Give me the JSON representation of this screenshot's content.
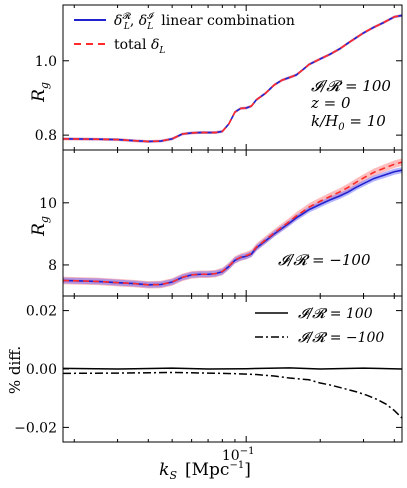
{
  "figure": {
    "xlabel": "k_S  [Mpc⁻¹]",
    "xlabel_parts": {
      "k": "k",
      "sub": "S",
      "unit_open": "[Mpc",
      "unit_exp": "−1",
      "unit_close": "]"
    }
  },
  "chart_data": [
    {
      "type": "line",
      "panel": "top",
      "ylabel": "R_g",
      "xscale": "log",
      "xlim": [
        0.018,
        0.43
      ],
      "ylim": [
        0.76,
        1.15
      ],
      "yticks": [
        {
          "v": 0.8,
          "label": "0.8"
        },
        {
          "v": 1.0,
          "label": "1.0"
        }
      ],
      "annotations": [
        "𝓘/𝓡 = 100",
        "z = 0",
        "k/H₀ = 10"
      ],
      "legend_position": "upper-left",
      "series": [
        {
          "name": "δ_L^𝓡, δ_L^𝓘 linear combination",
          "color": "#2222cc",
          "style": "solid",
          "band": true
        },
        {
          "name": "total δ_L",
          "color": "#ff2a2a",
          "style": "dashed"
        }
      ],
      "x": [
        0.018,
        0.025,
        0.03,
        0.035,
        0.04,
        0.045,
        0.05,
        0.055,
        0.06,
        0.065,
        0.07,
        0.075,
        0.08,
        0.085,
        0.09,
        0.095,
        0.1,
        0.105,
        0.11,
        0.12,
        0.13,
        0.14,
        0.15,
        0.16,
        0.17,
        0.18,
        0.2,
        0.22,
        0.24,
        0.26,
        0.28,
        0.3,
        0.33,
        0.36,
        0.4,
        0.43
      ],
      "y": [
        0.79,
        0.789,
        0.788,
        0.785,
        0.783,
        0.784,
        0.79,
        0.803,
        0.806,
        0.807,
        0.807,
        0.807,
        0.81,
        0.83,
        0.862,
        0.872,
        0.873,
        0.878,
        0.895,
        0.913,
        0.935,
        0.948,
        0.955,
        0.962,
        0.976,
        0.99,
        1.005,
        1.018,
        1.032,
        1.048,
        1.062,
        1.075,
        1.09,
        1.102,
        1.118,
        1.122
      ],
      "band_halfwidth": 0.004
    },
    {
      "type": "line",
      "panel": "middle",
      "ylabel": "R_g",
      "xscale": "log",
      "xlim": [
        0.018,
        0.43
      ],
      "ylim": [
        7.0,
        11.7
      ],
      "yticks": [
        {
          "v": 8,
          "label": "8"
        },
        {
          "v": 10,
          "label": "10"
        }
      ],
      "annotations": [
        "𝓘/𝓡 = −100"
      ],
      "series": [
        {
          "name": "δ_L^𝓡, δ_L^𝓘 linear combination",
          "color": "#2222cc",
          "style": "solid",
          "band": true
        },
        {
          "name": "total δ_L",
          "color": "#ff2a2a",
          "style": "dashed"
        }
      ],
      "x": [
        0.018,
        0.025,
        0.03,
        0.035,
        0.04,
        0.045,
        0.05,
        0.055,
        0.06,
        0.065,
        0.07,
        0.075,
        0.08,
        0.085,
        0.09,
        0.095,
        0.1,
        0.105,
        0.11,
        0.12,
        0.13,
        0.14,
        0.15,
        0.16,
        0.17,
        0.18,
        0.2,
        0.22,
        0.24,
        0.26,
        0.28,
        0.3,
        0.33,
        0.36,
        0.4,
        0.43
      ],
      "y": [
        7.5,
        7.47,
        7.43,
        7.4,
        7.36,
        7.37,
        7.45,
        7.6,
        7.68,
        7.7,
        7.7,
        7.72,
        7.78,
        7.95,
        8.15,
        8.24,
        8.28,
        8.35,
        8.55,
        8.78,
        9.0,
        9.18,
        9.35,
        9.52,
        9.65,
        9.78,
        9.95,
        10.1,
        10.22,
        10.35,
        10.5,
        10.62,
        10.78,
        10.88,
        11.0,
        11.05
      ],
      "red_offset": [
        0.0,
        0.0,
        0.0,
        0.0,
        0.0,
        0.0,
        0.0,
        0.0,
        0.0,
        0.0,
        0.0,
        0.0,
        0.01,
        0.01,
        0.01,
        0.01,
        0.02,
        0.02,
        0.02,
        0.03,
        0.03,
        0.04,
        0.05,
        0.06,
        0.07,
        0.08,
        0.1,
        0.11,
        0.13,
        0.15,
        0.16,
        0.18,
        0.2,
        0.22,
        0.24,
        0.26
      ],
      "band_halfwidth": 0.12
    },
    {
      "type": "line",
      "panel": "bottom",
      "ylabel": "% diff.",
      "xscale": "log",
      "xlim": [
        0.018,
        0.43
      ],
      "ylim": [
        -0.025,
        0.025
      ],
      "yticks": [
        {
          "v": 0.02,
          "label": "0.02"
        },
        {
          "v": 0.0,
          "label": "0.00"
        },
        {
          "v": -0.02,
          "label": "−0.02"
        }
      ],
      "xticks": [
        {
          "v": 0.1,
          "label_base": "10",
          "label_exp": "−1"
        }
      ],
      "legend_position": "upper-right",
      "series": [
        {
          "name": "𝓘/𝓡 = 100",
          "color": "#000000",
          "style": "solid",
          "x": [
            0.018,
            0.03,
            0.05,
            0.07,
            0.1,
            0.15,
            0.2,
            0.3,
            0.43
          ],
          "y": [
            0.0002,
            0.0,
            0.0003,
            0.0,
            0.0001,
            0.0004,
            0.0,
            0.0003,
            0.0
          ]
        },
        {
          "name": "𝓘/𝓡 = −100",
          "color": "#000000",
          "style": "dashdot",
          "x": [
            0.018,
            0.03,
            0.05,
            0.07,
            0.09,
            0.11,
            0.13,
            0.15,
            0.18,
            0.2,
            0.22,
            0.25,
            0.28,
            0.31,
            0.34,
            0.37,
            0.4,
            0.43
          ],
          "y": [
            -0.0015,
            -0.0014,
            -0.0012,
            -0.0014,
            -0.0016,
            -0.0019,
            -0.0024,
            -0.0031,
            -0.0037,
            -0.0048,
            -0.0055,
            -0.0067,
            -0.0078,
            -0.009,
            -0.0104,
            -0.012,
            -0.0142,
            -0.0168
          ]
        }
      ]
    }
  ]
}
